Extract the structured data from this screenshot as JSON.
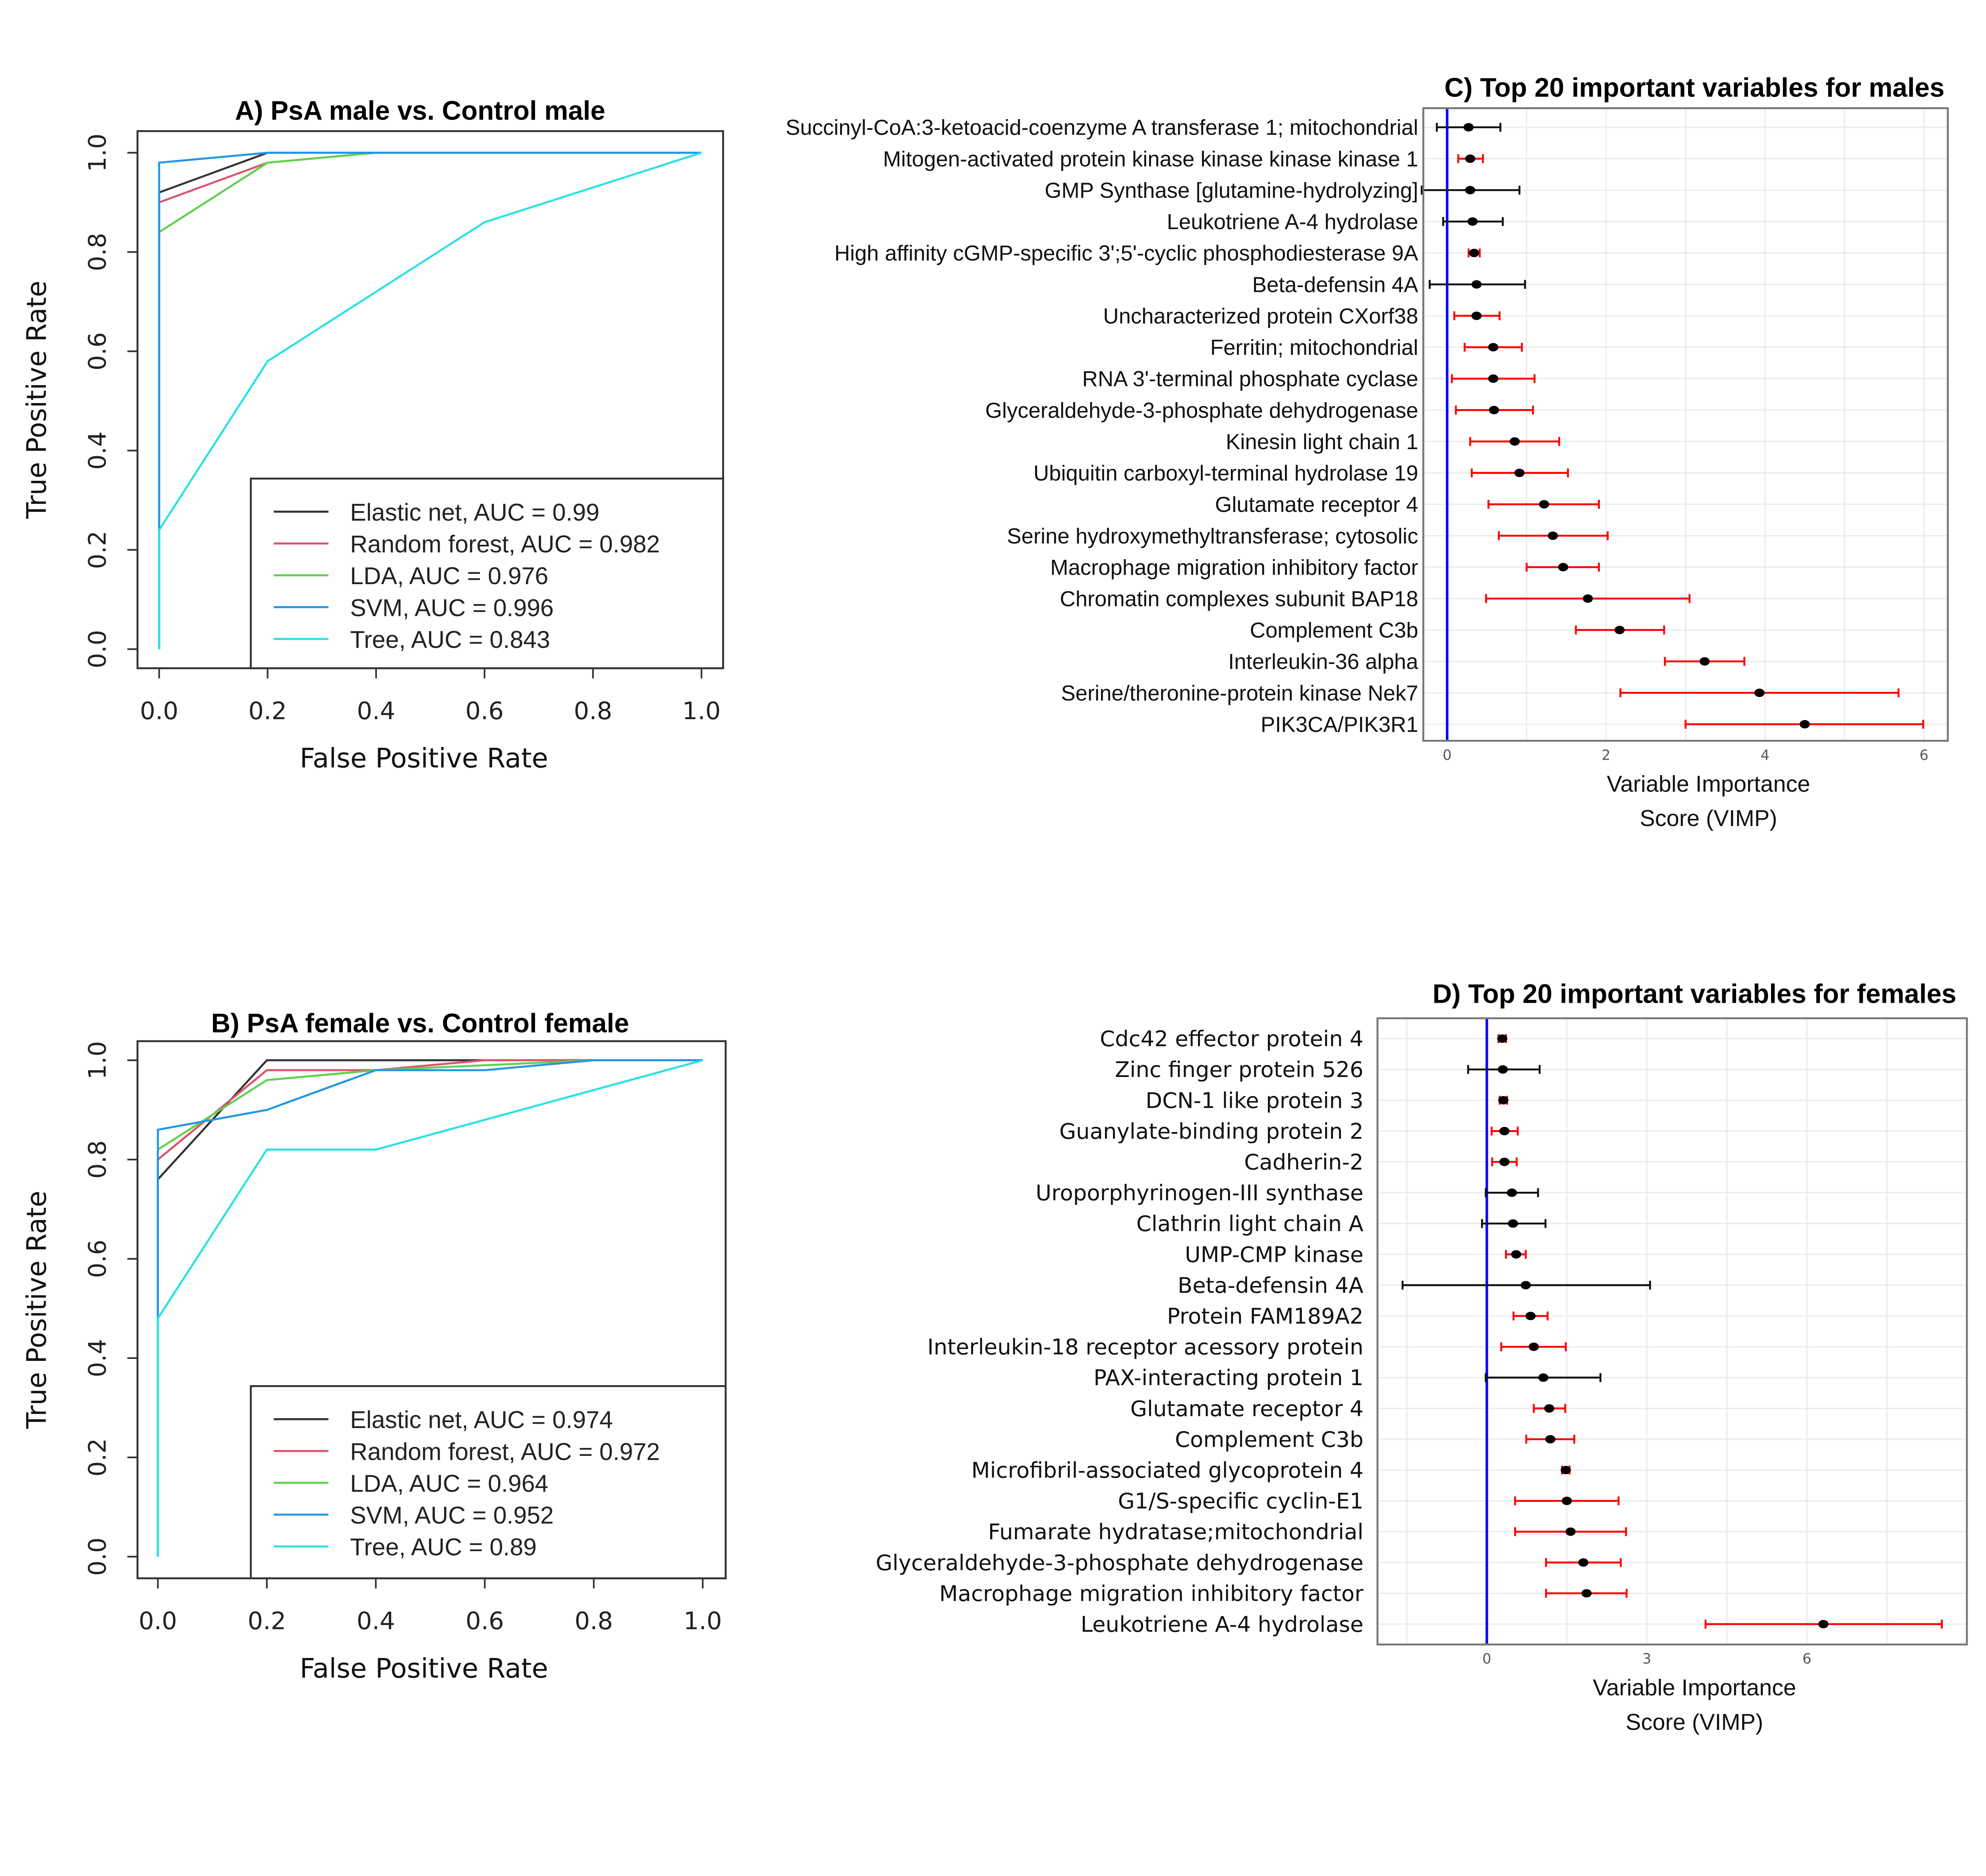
{
  "chart_data": [
    {
      "type": "line",
      "id": "A",
      "title": "A) PsA male vs. Control male",
      "xlabel": "False Positive Rate",
      "ylabel": "True Positive Rate",
      "xlim": [
        0,
        1
      ],
      "ylim": [
        0,
        1
      ],
      "xticks": [
        "0.0",
        "0.2",
        "0.4",
        "0.6",
        "0.8",
        "1.0"
      ],
      "yticks": [
        "0.0",
        "0.2",
        "0.4",
        "0.6",
        "0.8",
        "1.0"
      ],
      "legend_position": "bottom-right",
      "series": [
        {
          "name": "Elastic net, AUC =  0.99",
          "color": "#333333",
          "x": [
            0,
            0,
            0.2,
            1
          ],
          "y": [
            0,
            0.92,
            1,
            1
          ]
        },
        {
          "name": "Random forest, AUC =  0.982",
          "color": "#DF536B",
          "x": [
            0,
            0,
            0.2,
            0.4,
            1
          ],
          "y": [
            0,
            0.9,
            0.98,
            1,
            1
          ]
        },
        {
          "name": "LDA, AUC =  0.976",
          "color": "#61D04F",
          "x": [
            0,
            0,
            0.2,
            0.4,
            1
          ],
          "y": [
            0,
            0.84,
            0.98,
            1,
            1
          ]
        },
        {
          "name": "SVM, AUC =  0.996",
          "color": "#2297E6",
          "x": [
            0,
            0,
            0.2,
            1
          ],
          "y": [
            0,
            0.98,
            1,
            1
          ]
        },
        {
          "name": "Tree, AUC =  0.843",
          "color": "#28E2E5",
          "x": [
            0,
            0,
            0.2,
            0.6,
            1
          ],
          "y": [
            0,
            0.24,
            0.58,
            0.86,
            1
          ]
        }
      ]
    },
    {
      "type": "line",
      "id": "B",
      "title": "B) PsA female vs. Control female",
      "xlabel": "False Positive Rate",
      "ylabel": "True Positive Rate",
      "xlim": [
        0,
        1
      ],
      "ylim": [
        0,
        1
      ],
      "xticks": [
        "0.0",
        "0.2",
        "0.4",
        "0.6",
        "0.8",
        "1.0"
      ],
      "yticks": [
        "0.0",
        "0.2",
        "0.4",
        "0.6",
        "0.8",
        "1.0"
      ],
      "legend_position": "bottom-right",
      "series": [
        {
          "name": "Elastic net, AUC =  0.974",
          "color": "#333333",
          "x": [
            0,
            0,
            0.2,
            1
          ],
          "y": [
            0,
            0.76,
            1,
            1
          ]
        },
        {
          "name": "Random forest, AUC =  0.972",
          "color": "#DF536B",
          "x": [
            0,
            0,
            0.2,
            0.4,
            0.6,
            1
          ],
          "y": [
            0,
            0.8,
            0.98,
            0.98,
            1,
            1
          ]
        },
        {
          "name": "LDA, AUC =  0.964",
          "color": "#61D04F",
          "x": [
            0,
            0,
            0.2,
            0.4,
            0.8,
            1
          ],
          "y": [
            0,
            0.82,
            0.96,
            0.98,
            1,
            1
          ]
        },
        {
          "name": "SVM, AUC =  0.952",
          "color": "#2297E6",
          "x": [
            0,
            0,
            0.2,
            0.4,
            0.6,
            0.8,
            1
          ],
          "y": [
            0,
            0.86,
            0.9,
            0.98,
            0.98,
            1,
            1
          ]
        },
        {
          "name": "Tree, AUC =  0.89",
          "color": "#28E2E5",
          "x": [
            0,
            0,
            0.2,
            0.4,
            1
          ],
          "y": [
            0,
            0.48,
            0.82,
            0.82,
            1
          ]
        }
      ]
    },
    {
      "type": "scatter",
      "id": "C",
      "title": "C) Top 20 important variables for males",
      "xlabel": "Variable Importance Score (VIMP)",
      "xlabel_lines": [
        "Variable Importance",
        "Score (VIMP)"
      ],
      "xlim": [
        -0.3,
        6.3
      ],
      "xticks": [
        "0",
        "2",
        "4",
        "6"
      ],
      "xtick_values": [
        0,
        2,
        4,
        6
      ],
      "reference_line": 0,
      "colors": {
        "significant": "#FF0000",
        "not_significant": "#111111",
        "reference": "#0000FF"
      },
      "variables": [
        {
          "label": "Succinyl-CoA:3-ketoacid-coenzyme A transferase 1; mitochondrial",
          "vimp": 0.27,
          "lo": -0.13,
          "hi": 0.67,
          "significant": false
        },
        {
          "label": "Mitogen-activated protein kinase kinase kinase kinase 1",
          "vimp": 0.29,
          "lo": 0.14,
          "hi": 0.45,
          "significant": true
        },
        {
          "label": "GMP Synthase [glutamine-hydrolyzing]",
          "vimp": 0.29,
          "lo": -0.32,
          "hi": 0.91,
          "significant": false
        },
        {
          "label": "Leukotriene A-4 hydrolase",
          "vimp": 0.32,
          "lo": -0.05,
          "hi": 0.7,
          "significant": false
        },
        {
          "label": "High affinity cGMP-specific 3';5'-cyclic phosphodiesterase 9A",
          "vimp": 0.34,
          "lo": 0.27,
          "hi": 0.41,
          "significant": true
        },
        {
          "label": "Beta-defensin 4A",
          "vimp": 0.37,
          "lo": -0.22,
          "hi": 0.98,
          "significant": false
        },
        {
          "label": "Uncharacterized protein CXorf38",
          "vimp": 0.37,
          "lo": 0.09,
          "hi": 0.66,
          "significant": true
        },
        {
          "label": "Ferritin; mitochondrial",
          "vimp": 0.58,
          "lo": 0.22,
          "hi": 0.94,
          "significant": true
        },
        {
          "label": "RNA 3'-terminal phosphate cyclase",
          "vimp": 0.58,
          "lo": 0.06,
          "hi": 1.1,
          "significant": true
        },
        {
          "label": "Glyceraldehyde-3-phosphate dehydrogenase",
          "vimp": 0.59,
          "lo": 0.11,
          "hi": 1.08,
          "significant": true
        },
        {
          "label": "Kinesin light chain 1",
          "vimp": 0.85,
          "lo": 0.29,
          "hi": 1.41,
          "significant": true
        },
        {
          "label": "Ubiquitin carboxyl-terminal hydrolase 19",
          "vimp": 0.91,
          "lo": 0.31,
          "hi": 1.52,
          "significant": true
        },
        {
          "label": "Glutamate receptor 4",
          "vimp": 1.22,
          "lo": 0.52,
          "hi": 1.91,
          "significant": true
        },
        {
          "label": "Serine hydroxymethyltransferase; cytosolic",
          "vimp": 1.33,
          "lo": 0.65,
          "hi": 2.02,
          "significant": true
        },
        {
          "label": "Macrophage migration inhibitory factor",
          "vimp": 1.46,
          "lo": 1.0,
          "hi": 1.91,
          "significant": true
        },
        {
          "label": "Chromatin complexes subunit BAP18",
          "vimp": 1.77,
          "lo": 0.49,
          "hi": 3.05,
          "significant": true
        },
        {
          "label": "Complement C3b",
          "vimp": 2.17,
          "lo": 1.62,
          "hi": 2.73,
          "significant": true
        },
        {
          "label": "Interleukin-36 alpha",
          "vimp": 3.24,
          "lo": 2.74,
          "hi": 3.74,
          "significant": true
        },
        {
          "label": "Serine/theronine-protein kinase Nek7",
          "vimp": 3.93,
          "lo": 2.18,
          "hi": 5.68,
          "significant": true
        },
        {
          "label": "PIK3CA/PIK3R1",
          "vimp": 4.5,
          "lo": 3.0,
          "hi": 5.99,
          "significant": true
        }
      ]
    },
    {
      "type": "scatter",
      "id": "D",
      "title": "D) Top 20 important variables for females",
      "xlabel": "Variable Importance Score (VIMP)",
      "xlabel_lines": [
        "Variable Importance",
        "Score (VIMP)"
      ],
      "xlim": [
        -2.05,
        9.0
      ],
      "xticks": [
        "0",
        "3",
        "6"
      ],
      "xtick_values": [
        0,
        3,
        6
      ],
      "reference_line": 0,
      "colors": {
        "significant": "#FF0000",
        "not_significant": "#111111",
        "reference": "#0000FF"
      },
      "variables": [
        {
          "label": "Cdc42 effector protein 4",
          "vimp": 0.29,
          "lo": 0.22,
          "hi": 0.36,
          "significant": true
        },
        {
          "label": "Zinc finger protein 526",
          "vimp": 0.3,
          "lo": -0.35,
          "hi": 0.99,
          "significant": false
        },
        {
          "label": "DCN-1 like protein 3",
          "vimp": 0.31,
          "lo": 0.24,
          "hi": 0.38,
          "significant": true
        },
        {
          "label": "Guanylate-binding protein 2",
          "vimp": 0.33,
          "lo": 0.09,
          "hi": 0.58,
          "significant": true
        },
        {
          "label": "Cadherin-2",
          "vimp": 0.33,
          "lo": 0.1,
          "hi": 0.56,
          "significant": true
        },
        {
          "label": "Uroporphyrinogen-III synthase",
          "vimp": 0.47,
          "lo": -0.02,
          "hi": 0.96,
          "significant": false
        },
        {
          "label": "Clathrin light chain A",
          "vimp": 0.49,
          "lo": -0.09,
          "hi": 1.1,
          "significant": false
        },
        {
          "label": "UMP-CMP kinase",
          "vimp": 0.55,
          "lo": 0.36,
          "hi": 0.73,
          "significant": true
        },
        {
          "label": "Beta-defensin 4A",
          "vimp": 0.73,
          "lo": -1.58,
          "hi": 3.06,
          "significant": false
        },
        {
          "label": "Protein FAM189A2",
          "vimp": 0.82,
          "lo": 0.5,
          "hi": 1.14,
          "significant": true
        },
        {
          "label": "Interleukin-18 receptor acessory protein",
          "vimp": 0.88,
          "lo": 0.27,
          "hi": 1.48,
          "significant": true
        },
        {
          "label": "PAX-interacting protein 1",
          "vimp": 1.06,
          "lo": -0.02,
          "hi": 2.13,
          "significant": false
        },
        {
          "label": "Glutamate receptor 4",
          "vimp": 1.17,
          "lo": 0.88,
          "hi": 1.47,
          "significant": true
        },
        {
          "label": "Complement C3b",
          "vimp": 1.19,
          "lo": 0.74,
          "hi": 1.64,
          "significant": true
        },
        {
          "label": "Microfibril-associated glycoprotein 4",
          "vimp": 1.48,
          "lo": 1.41,
          "hi": 1.55,
          "significant": true
        },
        {
          "label": "G1/S-specific cyclin-E1",
          "vimp": 1.5,
          "lo": 0.53,
          "hi": 2.47,
          "significant": true
        },
        {
          "label": "Fumarate hydratase;mitochondrial",
          "vimp": 1.57,
          "lo": 0.53,
          "hi": 2.61,
          "significant": true
        },
        {
          "label": "Glyceraldehyde-3-phosphate dehydrogenase",
          "vimp": 1.81,
          "lo": 1.11,
          "hi": 2.51,
          "significant": true
        },
        {
          "label": "Macrophage migration inhibitory factor",
          "vimp": 1.87,
          "lo": 1.11,
          "hi": 2.62,
          "significant": true
        },
        {
          "label": "Leukotriene A-4 hydrolase",
          "vimp": 6.31,
          "lo": 4.1,
          "hi": 8.53,
          "significant": true
        }
      ]
    }
  ]
}
